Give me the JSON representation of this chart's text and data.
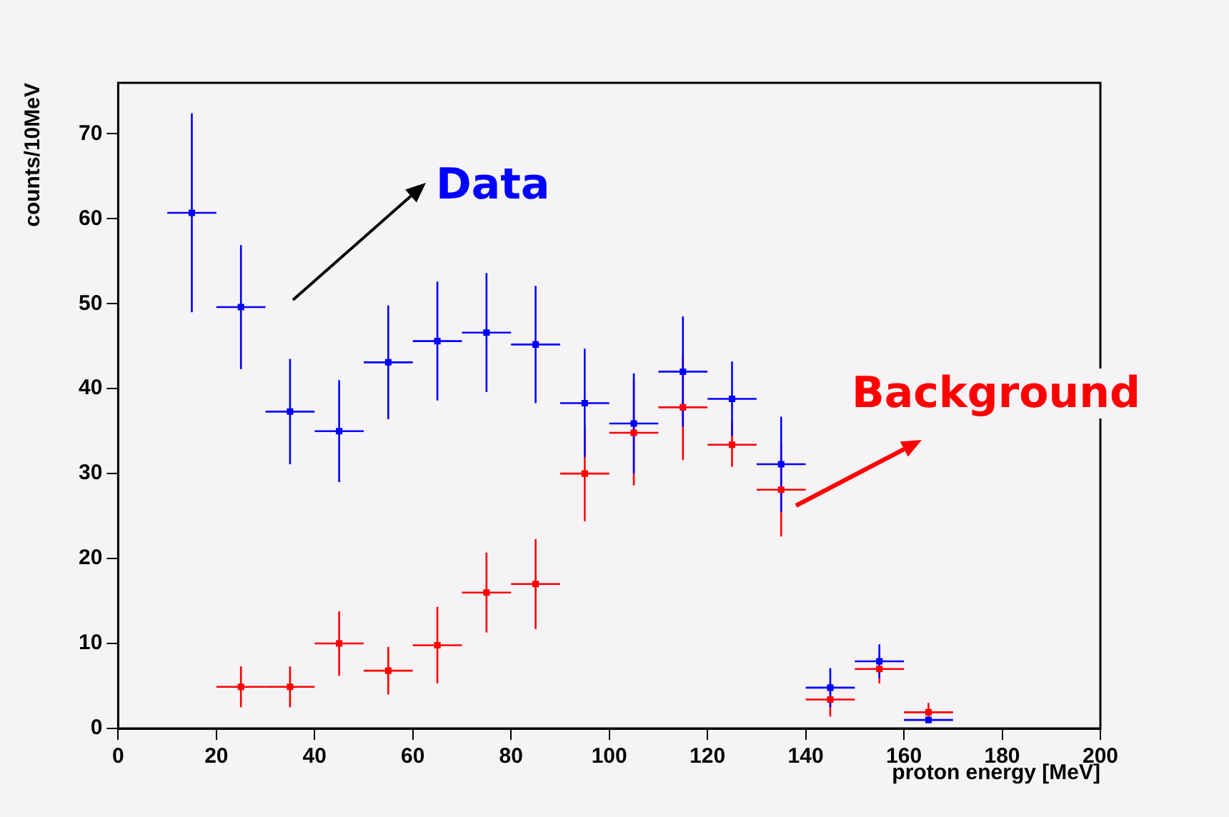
{
  "chart_data": {
    "type": "scatter",
    "xlabel": "proton energy [MeV]",
    "ylabel": "counts/10MeV",
    "xlim": [
      0,
      200
    ],
    "xticks": [
      0,
      20,
      40,
      60,
      80,
      100,
      120,
      140,
      160,
      180,
      200
    ],
    "ylim": [
      0,
      76
    ],
    "yticks": [
      0,
      10,
      20,
      30,
      40,
      50,
      60,
      70
    ],
    "grid": false,
    "legend": false,
    "marker": "square",
    "annotations": [
      "Data",
      "Background"
    ],
    "series": [
      {
        "color": "#0000ff",
        "x": [
          15,
          25,
          35,
          45,
          55,
          65,
          75,
          85,
          95,
          105,
          115,
          125,
          135,
          145,
          155,
          165
        ],
        "values": [
          60.7,
          49.6,
          37.3,
          35.0,
          43.1,
          45.6,
          46.6,
          45.2,
          38.3,
          35.9,
          42.0,
          38.8,
          31.1,
          4.8,
          7.9,
          1.0
        ],
        "errors": [
          11.7,
          7.3,
          6.2,
          6.0,
          6.7,
          7.0,
          7.0,
          6.9,
          6.4,
          5.9,
          6.5,
          4.4,
          5.6,
          2.3,
          2.0,
          null
        ],
        "xerrors": [
          5,
          5,
          5,
          5,
          5,
          5,
          5,
          5,
          5,
          5,
          5,
          5,
          5,
          5,
          5,
          5
        ]
      },
      {
        "color": "#ff0000",
        "x": [
          25,
          35,
          45,
          55,
          65,
          75,
          85,
          95,
          105,
          115,
          125,
          135,
          145,
          155,
          165
        ],
        "values": [
          4.9,
          4.9,
          10.0,
          6.8,
          9.8,
          16.0,
          17.0,
          30.0,
          34.8,
          37.8,
          33.4,
          28.1,
          3.4,
          7.0,
          1.9
        ],
        "errors": [
          2.4,
          2.4,
          3.8,
          2.8,
          4.5,
          4.7,
          5.3,
          5.6,
          6.2,
          6.2,
          2.6,
          5.5,
          2.0,
          1.7,
          1.1
        ],
        "xerrors": [
          5,
          5,
          5,
          5,
          5,
          5,
          5,
          5,
          5,
          5,
          5,
          5,
          5,
          5,
          5
        ]
      }
    ]
  }
}
